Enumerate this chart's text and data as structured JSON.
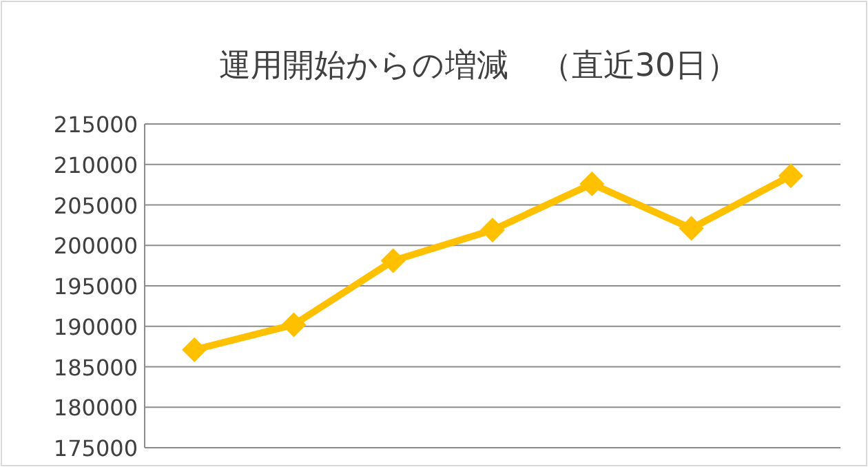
{
  "chart_data": {
    "type": "line",
    "title": "運用開始からの増減　（直近30日）",
    "categories": [
      null,
      null,
      null,
      null,
      null,
      null,
      null
    ],
    "series": [
      {
        "color": "#ffc000",
        "values": [
          187100,
          190200,
          198100,
          201900,
          207600,
          202100,
          208600
        ]
      }
    ],
    "ylim": [
      175000,
      215000
    ],
    "yticks": [
      175000,
      180000,
      185000,
      190000,
      195000,
      200000,
      205000,
      210000,
      215000
    ],
    "grid": "y",
    "marker": "diamond",
    "line_style": "solid"
  }
}
